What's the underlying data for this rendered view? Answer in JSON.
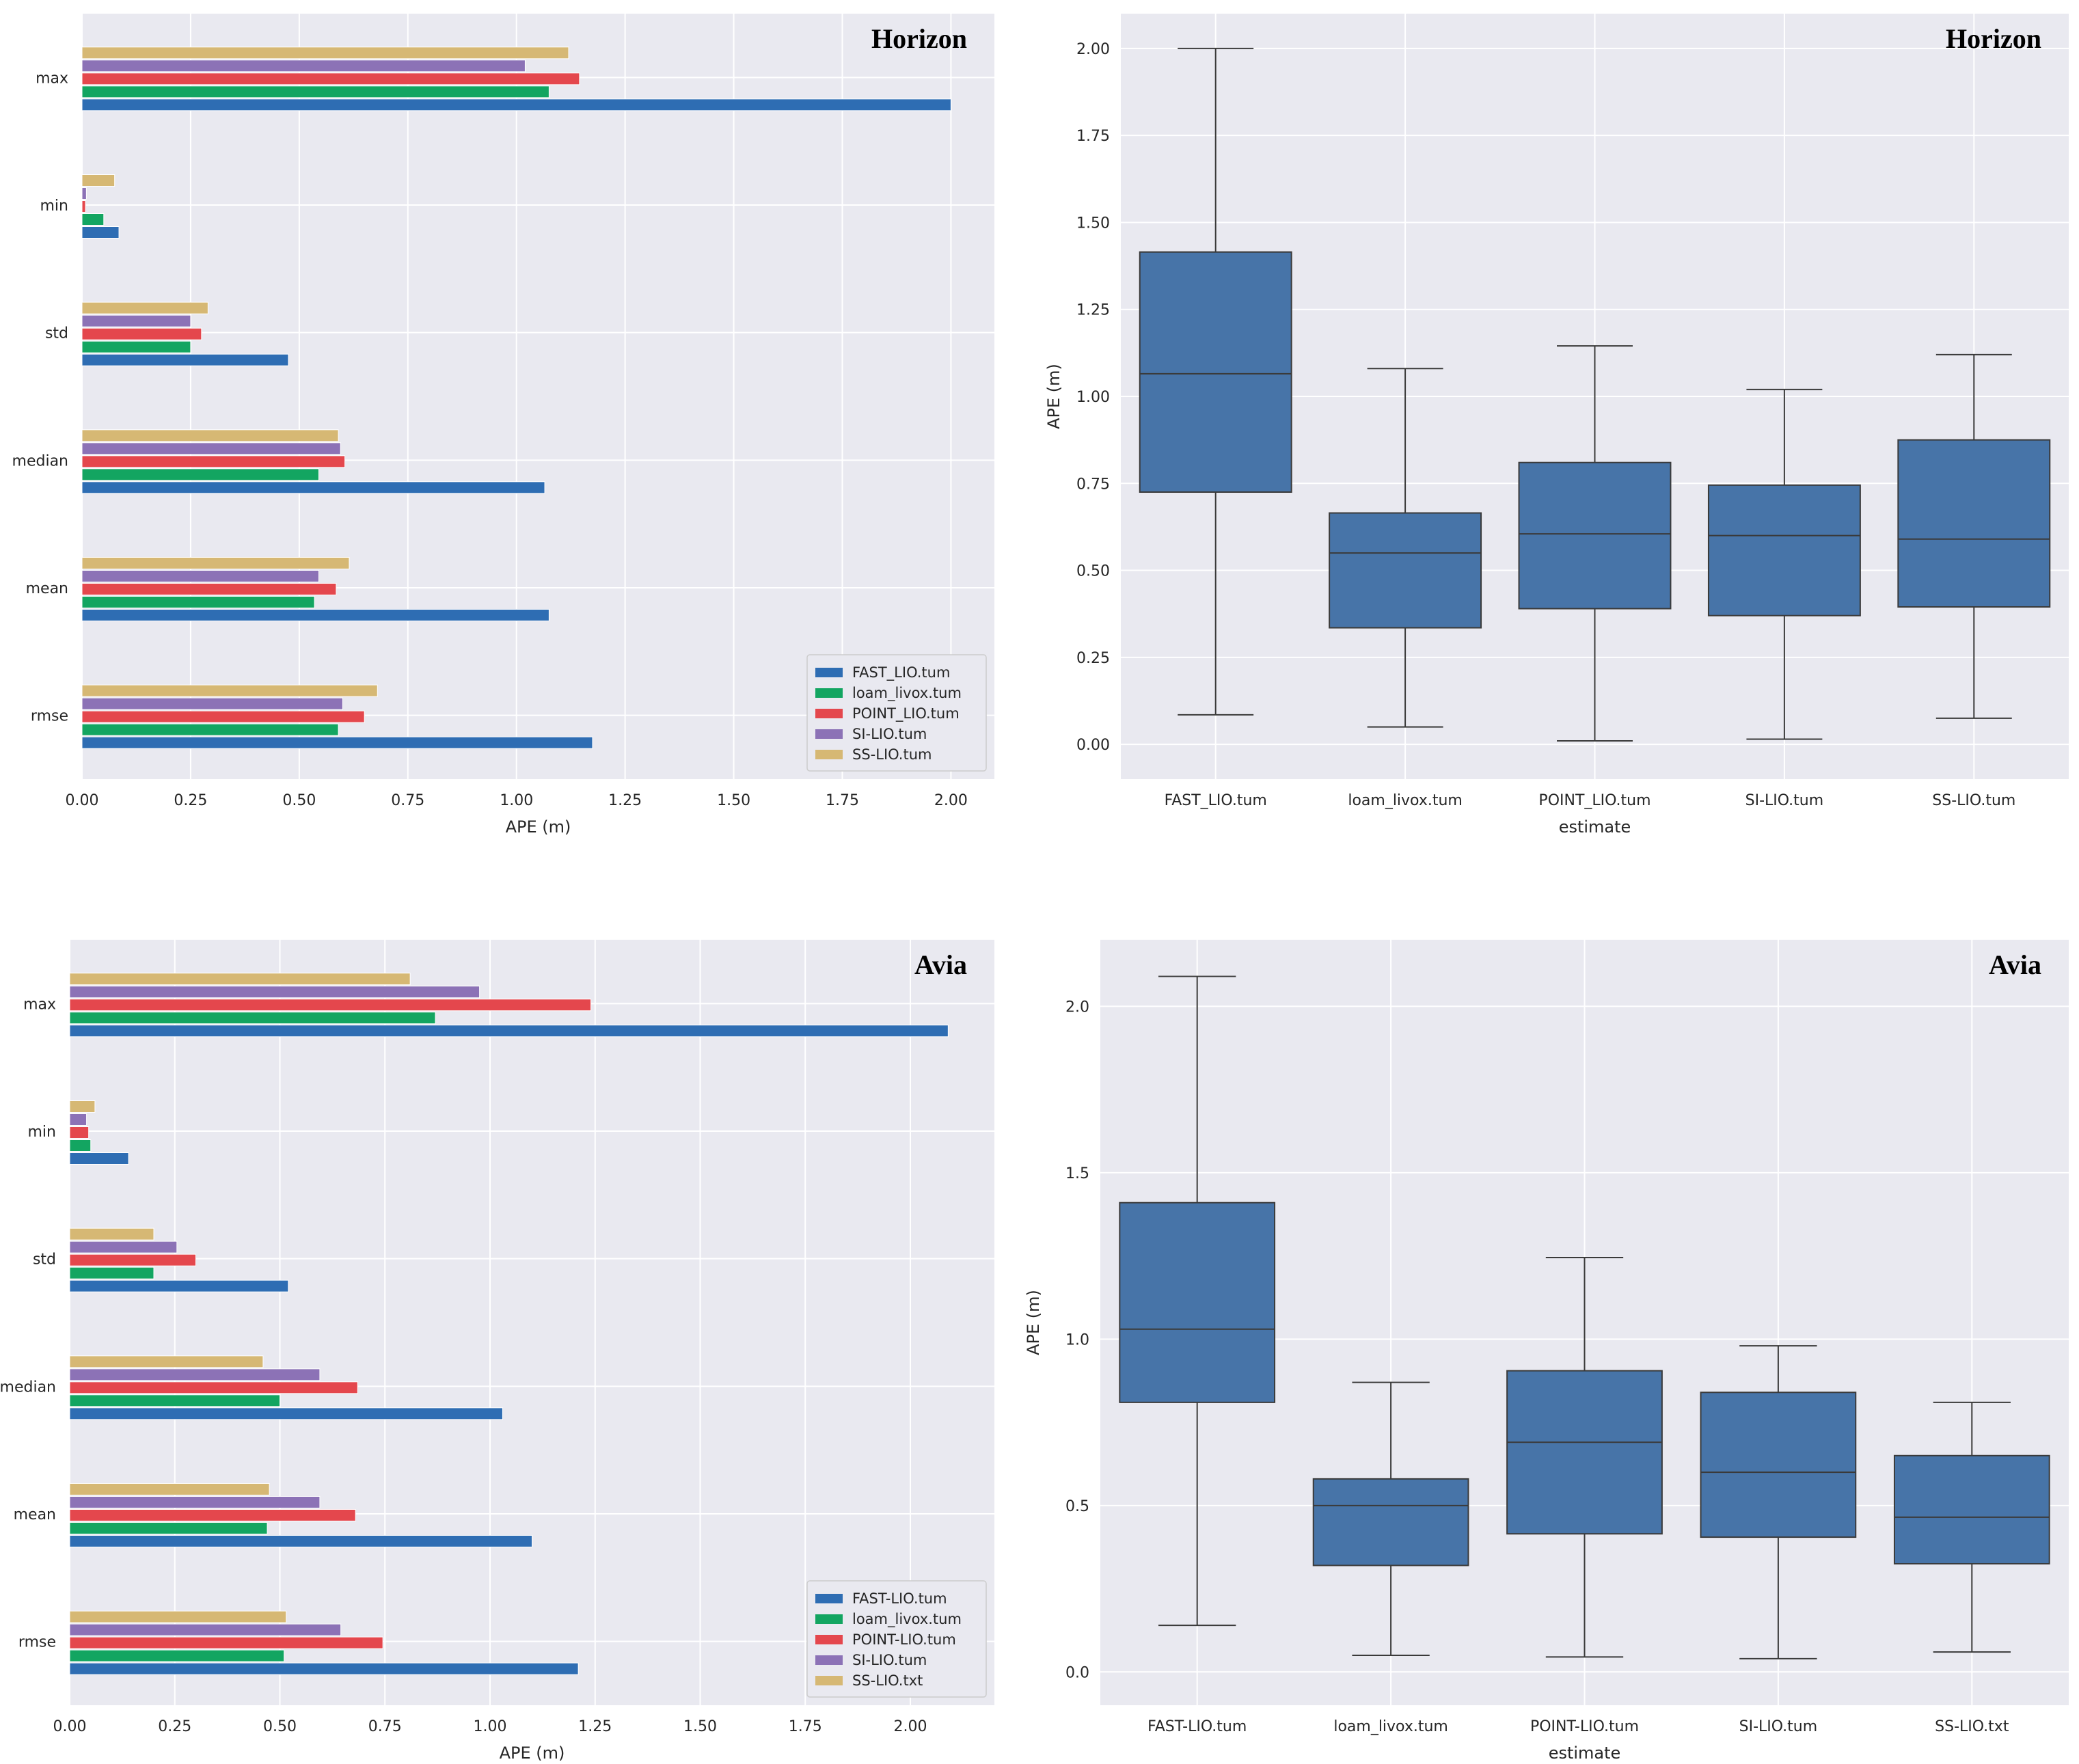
{
  "colors": {
    "plot_bg": "#e9e9f0",
    "grid": "#ffffff",
    "box": "#4774a8",
    "series": [
      "#2e6db3",
      "#13a561",
      "#e4474d",
      "#8c72b6",
      "#d6b874"
    ]
  },
  "chart_data": [
    {
      "type": "bar",
      "orientation": "horizontal",
      "title": "Horizon",
      "xlabel": "APE (m)",
      "ylabel": "",
      "xlim": [
        0,
        2.1
      ],
      "xticks": [
        "0.00",
        "0.25",
        "0.50",
        "0.75",
        "1.00",
        "1.25",
        "1.50",
        "1.75",
        "2.00"
      ],
      "categories": [
        "max",
        "min",
        "std",
        "median",
        "mean",
        "rmse"
      ],
      "legend_position": "lower-right",
      "grid": true,
      "series": [
        {
          "name": "FAST_LIO.tum",
          "values": [
            2.0,
            0.085,
            0.475,
            1.065,
            1.075,
            1.175
          ]
        },
        {
          "name": "loam_livox.tum",
          "values": [
            1.075,
            0.05,
            0.25,
            0.545,
            0.535,
            0.59
          ]
        },
        {
          "name": "POINT_LIO.tum",
          "values": [
            1.145,
            0.008,
            0.275,
            0.605,
            0.585,
            0.65
          ]
        },
        {
          "name": "SI-LIO.tum",
          "values": [
            1.02,
            0.01,
            0.25,
            0.595,
            0.545,
            0.6
          ]
        },
        {
          "name": "SS-LIO.tum",
          "values": [
            1.12,
            0.075,
            0.29,
            0.59,
            0.615,
            0.68
          ]
        }
      ]
    },
    {
      "type": "box",
      "title": "Horizon",
      "xlabel": "estimate",
      "ylabel": "APE (m)",
      "ylim": [
        -0.1,
        2.1
      ],
      "yticks": [
        "0.00",
        "0.25",
        "0.50",
        "0.75",
        "1.00",
        "1.25",
        "1.50",
        "1.75",
        "2.00"
      ],
      "categories": [
        "FAST_LIO.tum",
        "loam_livox.tum",
        "POINT_LIO.tum",
        "SI-LIO.tum",
        "SS-LIO.tum"
      ],
      "grid": true,
      "boxes": [
        {
          "whisker_low": 0.085,
          "q1": 0.725,
          "median": 1.065,
          "q3": 1.415,
          "whisker_high": 2.0
        },
        {
          "whisker_low": 0.05,
          "q1": 0.335,
          "median": 0.55,
          "q3": 0.665,
          "whisker_high": 1.08
        },
        {
          "whisker_low": 0.01,
          "q1": 0.39,
          "median": 0.605,
          "q3": 0.81,
          "whisker_high": 1.145
        },
        {
          "whisker_low": 0.015,
          "q1": 0.37,
          "median": 0.6,
          "q3": 0.745,
          "whisker_high": 1.02
        },
        {
          "whisker_low": 0.075,
          "q1": 0.395,
          "median": 0.59,
          "q3": 0.875,
          "whisker_high": 1.12
        }
      ]
    },
    {
      "type": "bar",
      "orientation": "horizontal",
      "title": "Avia",
      "xlabel": "APE (m)",
      "ylabel": "",
      "xlim": [
        0,
        2.2
      ],
      "xticks": [
        "0.00",
        "0.25",
        "0.50",
        "0.75",
        "1.00",
        "1.25",
        "1.50",
        "1.75",
        "2.00"
      ],
      "categories": [
        "max",
        "min",
        "std",
        "median",
        "mean",
        "rmse"
      ],
      "legend_position": "lower-right",
      "grid": true,
      "series": [
        {
          "name": "FAST-LIO.tum",
          "values": [
            2.09,
            0.14,
            0.52,
            1.03,
            1.1,
            1.21
          ]
        },
        {
          "name": "loam_livox.tum",
          "values": [
            0.87,
            0.05,
            0.2,
            0.5,
            0.47,
            0.51
          ]
        },
        {
          "name": "POINT-LIO.tum",
          "values": [
            1.24,
            0.045,
            0.3,
            0.685,
            0.68,
            0.745
          ]
        },
        {
          "name": "SI-LIO.tum",
          "values": [
            0.975,
            0.04,
            0.255,
            0.595,
            0.595,
            0.645
          ]
        },
        {
          "name": "SS-LIO.txt",
          "values": [
            0.81,
            0.06,
            0.2,
            0.46,
            0.475,
            0.515
          ]
        }
      ]
    },
    {
      "type": "box",
      "title": "Avia",
      "xlabel": "estimate",
      "ylabel": "APE (m)",
      "ylim": [
        -0.1,
        2.2
      ],
      "yticks": [
        "0.0",
        "0.5",
        "1.0",
        "1.5",
        "2.0"
      ],
      "categories": [
        "FAST-LIO.tum",
        "loam_livox.tum",
        "POINT-LIO.tum",
        "SI-LIO.tum",
        "SS-LIO.txt"
      ],
      "grid": true,
      "boxes": [
        {
          "whisker_low": 0.14,
          "q1": 0.81,
          "median": 1.03,
          "q3": 1.41,
          "whisker_high": 2.09
        },
        {
          "whisker_low": 0.05,
          "q1": 0.32,
          "median": 0.5,
          "q3": 0.58,
          "whisker_high": 0.87
        },
        {
          "whisker_low": 0.045,
          "q1": 0.415,
          "median": 0.69,
          "q3": 0.905,
          "whisker_high": 1.245
        },
        {
          "whisker_low": 0.04,
          "q1": 0.405,
          "median": 0.6,
          "q3": 0.84,
          "whisker_high": 0.98
        },
        {
          "whisker_low": 0.06,
          "q1": 0.325,
          "median": 0.465,
          "q3": 0.65,
          "whisker_high": 0.81
        }
      ]
    }
  ]
}
